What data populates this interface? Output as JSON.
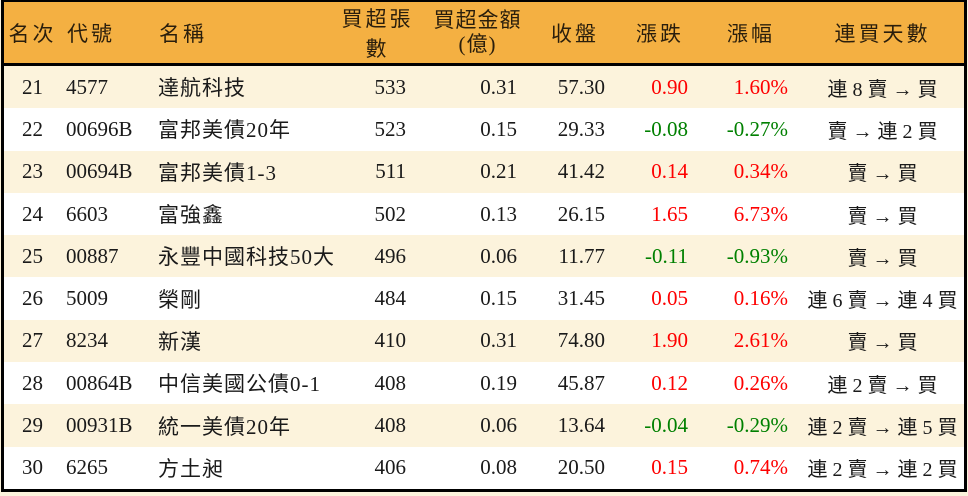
{
  "table": {
    "columns": [
      {
        "key": "rank",
        "label": "名次"
      },
      {
        "key": "code",
        "label": "代號"
      },
      {
        "key": "name",
        "label": "名稱"
      },
      {
        "key": "volume",
        "label": "買超張數"
      },
      {
        "key": "amount",
        "label": "買超金額",
        "label2": "(億)"
      },
      {
        "key": "close",
        "label": "收盤"
      },
      {
        "key": "change",
        "label": "漲跌"
      },
      {
        "key": "change_pct",
        "label": "漲幅"
      },
      {
        "key": "streak",
        "label": "連買天數"
      }
    ],
    "rows": [
      {
        "rank": "21",
        "code": "4577",
        "name": "達航科技",
        "volume": "533",
        "amount": "0.31",
        "close": "57.30",
        "change": "0.90",
        "change_pct": "1.60%",
        "trend": "up",
        "streak": "連 8 賣 → 買"
      },
      {
        "rank": "22",
        "code": "00696B",
        "name": "富邦美債20年",
        "volume": "523",
        "amount": "0.15",
        "close": "29.33",
        "change": "-0.08",
        "change_pct": "-0.27%",
        "trend": "down",
        "streak": "賣 → 連 2 買"
      },
      {
        "rank": "23",
        "code": "00694B",
        "name": "富邦美債1-3",
        "volume": "511",
        "amount": "0.21",
        "close": "41.42",
        "change": "0.14",
        "change_pct": "0.34%",
        "trend": "up",
        "streak": "賣 → 買"
      },
      {
        "rank": "24",
        "code": "6603",
        "name": "富強鑫",
        "volume": "502",
        "amount": "0.13",
        "close": "26.15",
        "change": "1.65",
        "change_pct": "6.73%",
        "trend": "up",
        "streak": "賣 → 買"
      },
      {
        "rank": "25",
        "code": "00887",
        "name": "永豐中國科技50大",
        "volume": "496",
        "amount": "0.06",
        "close": "11.77",
        "change": "-0.11",
        "change_pct": "-0.93%",
        "trend": "down",
        "streak": "賣 → 買"
      },
      {
        "rank": "26",
        "code": "5009",
        "name": "榮剛",
        "volume": "484",
        "amount": "0.15",
        "close": "31.45",
        "change": "0.05",
        "change_pct": "0.16%",
        "trend": "up",
        "streak": "連 6 賣 → 連 4 買"
      },
      {
        "rank": "27",
        "code": "8234",
        "name": "新漢",
        "volume": "410",
        "amount": "0.31",
        "close": "74.80",
        "change": "1.90",
        "change_pct": "2.61%",
        "trend": "up",
        "streak": "賣 → 買"
      },
      {
        "rank": "28",
        "code": "00864B",
        "name": "中信美國公債0-1",
        "volume": "408",
        "amount": "0.19",
        "close": "45.87",
        "change": "0.12",
        "change_pct": "0.26%",
        "trend": "up",
        "streak": "連 2 賣 → 買"
      },
      {
        "rank": "29",
        "code": "00931B",
        "name": "統一美債20年",
        "volume": "408",
        "amount": "0.06",
        "close": "13.64",
        "change": "-0.04",
        "change_pct": "-0.29%",
        "trend": "down",
        "streak": "連 2 賣 → 連 5 買"
      },
      {
        "rank": "30",
        "code": "6265",
        "name": "方土昶",
        "volume": "406",
        "amount": "0.08",
        "close": "20.50",
        "change": "0.15",
        "change_pct": "0.74%",
        "trend": "up",
        "streak": "連 2 賣 → 連 2 買"
      }
    ]
  },
  "colors": {
    "header_bg": "#F4B042",
    "header_text": "#2A1E0C",
    "row_alt_bg": "#FCF3DC",
    "row_bg": "#FFFFFF",
    "text": "#1A1A1A",
    "up": "#FE0000",
    "down": "#008000",
    "border": "#000000"
  },
  "chart_data": {
    "type": "table",
    "title": "",
    "columns": [
      "名次",
      "代號",
      "名稱",
      "買超張數",
      "買超金額(億)",
      "收盤",
      "漲跌",
      "漲幅",
      "連買天數"
    ],
    "rows": [
      [
        "21",
        "4577",
        "達航科技",
        "533",
        "0.31",
        "57.30",
        "0.90",
        "1.60%",
        "連 8 賣 → 買"
      ],
      [
        "22",
        "00696B",
        "富邦美債20年",
        "523",
        "0.15",
        "29.33",
        "-0.08",
        "-0.27%",
        "賣 → 連 2 買"
      ],
      [
        "23",
        "00694B",
        "富邦美債1-3",
        "511",
        "0.21",
        "41.42",
        "0.14",
        "0.34%",
        "賣 → 買"
      ],
      [
        "24",
        "6603",
        "富強鑫",
        "502",
        "0.13",
        "26.15",
        "1.65",
        "6.73%",
        "賣 → 買"
      ],
      [
        "25",
        "00887",
        "永豐中國科技50大",
        "496",
        "0.06",
        "11.77",
        "-0.11",
        "-0.93%",
        "賣 → 買"
      ],
      [
        "26",
        "5009",
        "榮剛",
        "484",
        "0.15",
        "31.45",
        "0.05",
        "0.16%",
        "連 6 賣 → 連 4 買"
      ],
      [
        "27",
        "8234",
        "新漢",
        "410",
        "0.31",
        "74.80",
        "1.90",
        "2.61%",
        "賣 → 買"
      ],
      [
        "28",
        "00864B",
        "中信美國公債0-1",
        "408",
        "0.19",
        "45.87",
        "0.12",
        "0.26%",
        "連 2 賣 → 買"
      ],
      [
        "29",
        "00931B",
        "統一美債20年",
        "408",
        "0.06",
        "13.64",
        "-0.04",
        "-0.29%",
        "連 2 賣 → 連 5 買"
      ],
      [
        "30",
        "6265",
        "方土昶",
        "406",
        "0.08",
        "20.50",
        "0.15",
        "0.74%",
        "連 2 賣 → 連 2 買"
      ]
    ],
    "notes": "red = price up, green = price down; rows alternate cream/white; amber header"
  }
}
